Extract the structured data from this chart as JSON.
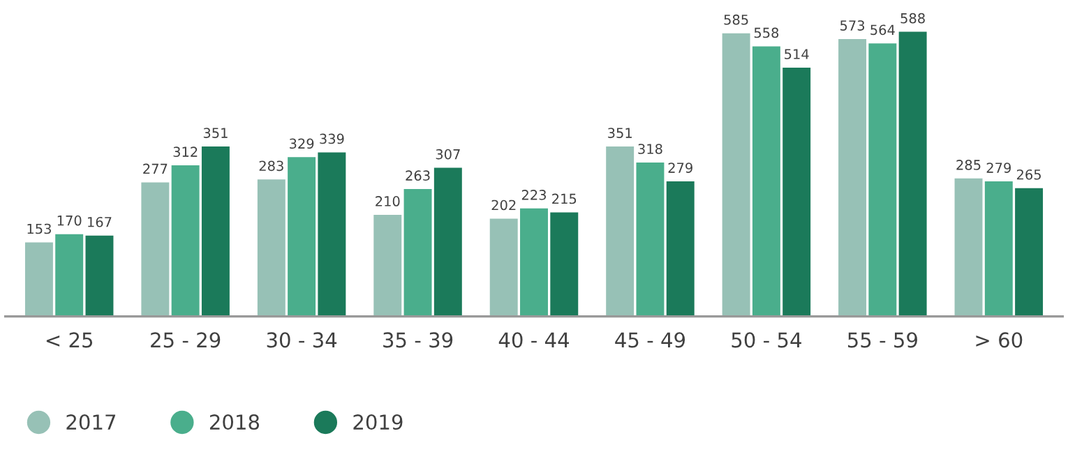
{
  "chart_data": {
    "type": "bar",
    "categories": [
      "< 25",
      "25 - 29",
      "30 - 34",
      "35 - 39",
      "40 - 44",
      "45 - 49",
      "50 - 54",
      "55 - 59",
      "> 60"
    ],
    "series": [
      {
        "name": "2017",
        "color": "#97c1b6",
        "values": [
          153,
          277,
          283,
          210,
          202,
          351,
          585,
          573,
          285
        ]
      },
      {
        "name": "2018",
        "color": "#4aae8c",
        "values": [
          170,
          312,
          329,
          263,
          223,
          318,
          558,
          564,
          279
        ]
      },
      {
        "name": "2019",
        "color": "#1b7a5a",
        "values": [
          167,
          351,
          339,
          307,
          215,
          279,
          514,
          588,
          265
        ]
      }
    ],
    "data_labels": true,
    "legend": "bottom left",
    "grid": false
  }
}
